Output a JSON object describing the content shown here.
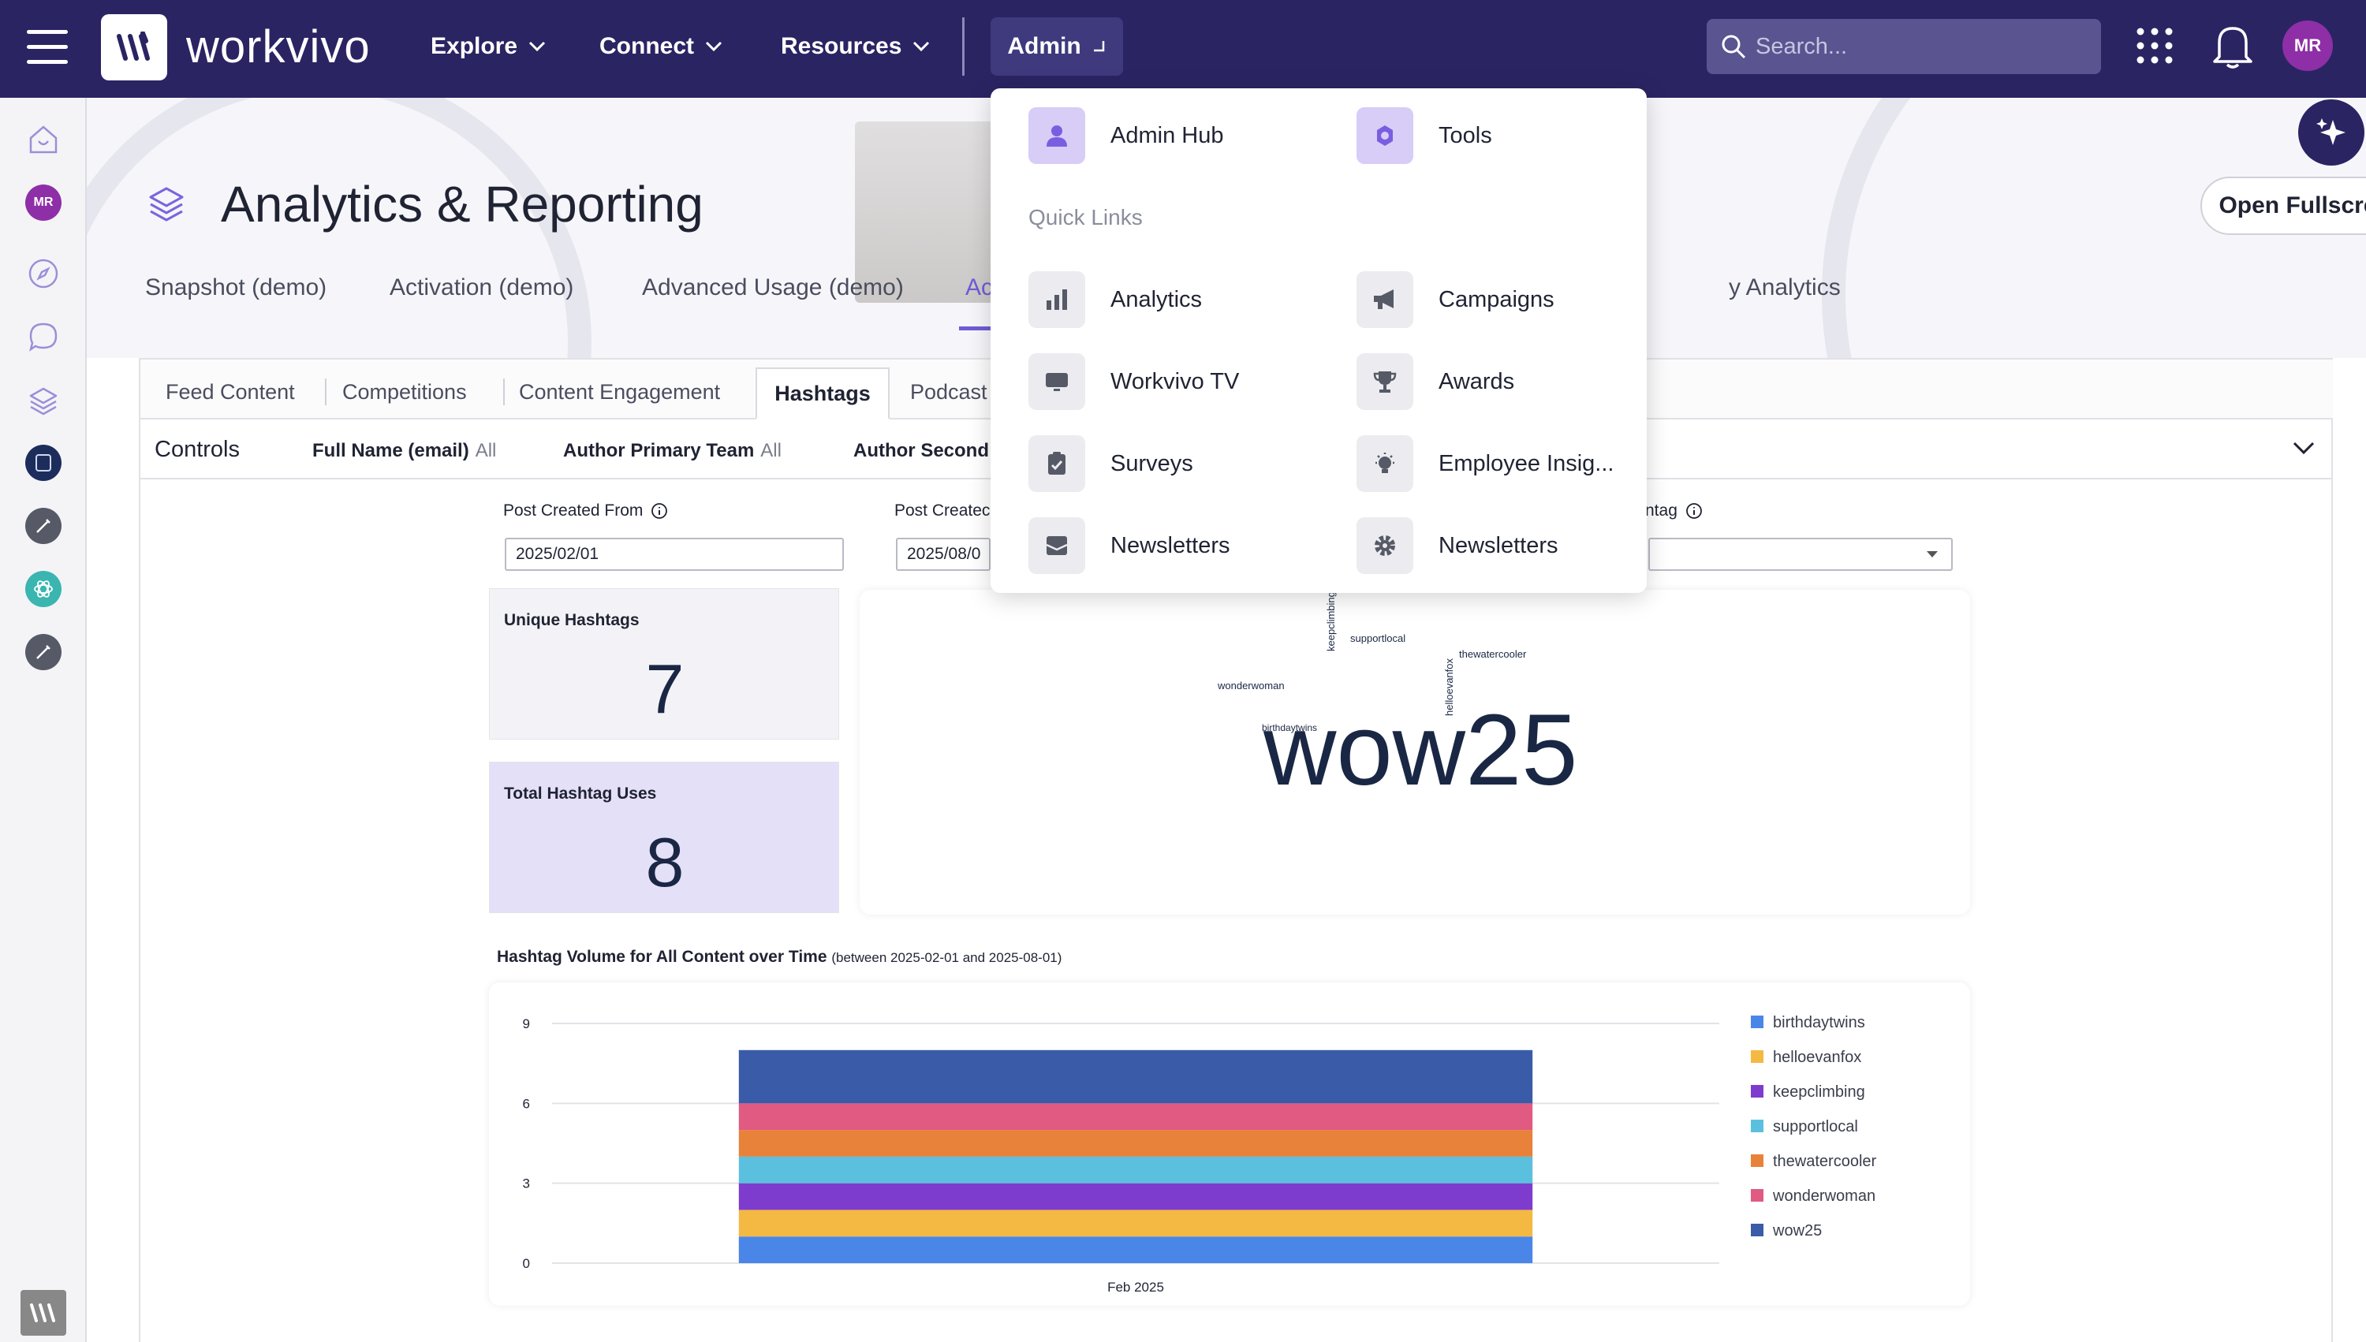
{
  "brand": "workvivo",
  "nav": {
    "explore": "Explore",
    "connect": "Connect",
    "resources": "Resources",
    "admin": "Admin"
  },
  "search": {
    "placeholder": "Search..."
  },
  "user": {
    "initials": "MR"
  },
  "page": {
    "title": "Analytics & Reporting",
    "fullscreen": "Open Fullscreen",
    "tabs": [
      "Snapshot (demo)",
      "Activation (demo)",
      "Advanced Usage (demo)",
      "Ac",
      "y Analytics"
    ]
  },
  "dashboard": {
    "subtabs": [
      "Feed Content",
      "Competitions",
      "Content Engagement",
      "Hashtags",
      "Podcast"
    ],
    "controls": {
      "label": "Controls",
      "filters": [
        {
          "name": "Full Name (email)",
          "value": "All"
        },
        {
          "name": "Author Primary Team",
          "value": "All"
        },
        {
          "name": "Author Second",
          "value": ""
        }
      ]
    },
    "fields": {
      "from_label": "Post Created From",
      "from_value": "2025/02/01",
      "to_label": "Post Createc",
      "to_value": "2025/08/0",
      "hashtag_label": "ntag"
    },
    "kpis": {
      "unique_label": "Unique Hashtags",
      "unique_value": "7",
      "total_label": "Total Hashtag Uses",
      "total_value": "8"
    },
    "word_cloud": {
      "words": [
        "wow25",
        "keepclimbing",
        "supportlocal",
        "thewatercooler",
        "helloevanfox",
        "wonderwoman",
        "birthdaytwins"
      ]
    },
    "chart_title": "Hashtag Volume for All Content over Time",
    "chart_subtitle": "(between 2025-02-01 and 2025-08-01)"
  },
  "chart_data": {
    "type": "bar",
    "stacked": true,
    "categories": [
      "Feb 2025"
    ],
    "series": [
      {
        "name": "birthdaytwins",
        "values": [
          1
        ],
        "color": "#4a86e8"
      },
      {
        "name": "helloevanfox",
        "values": [
          1
        ],
        "color": "#f4b942"
      },
      {
        "name": "keepclimbing",
        "values": [
          1
        ],
        "color": "#7e3ccf"
      },
      {
        "name": "supportlocal",
        "values": [
          1
        ],
        "color": "#5bc0de"
      },
      {
        "name": "thewatercooler",
        "values": [
          1
        ],
        "color": "#e8823a"
      },
      {
        "name": "wonderwoman",
        "values": [
          1
        ],
        "color": "#e05a82"
      },
      {
        "name": "wow25",
        "values": [
          2
        ],
        "color": "#3a5ba8"
      }
    ],
    "yticks": [
      "0",
      "3",
      "6",
      "9"
    ],
    "ylim": [
      0,
      9
    ],
    "grid": true,
    "legend": "right"
  },
  "admin_menu": {
    "admin_hub": "Admin Hub",
    "tools": "Tools",
    "quick_links": "Quick Links",
    "left": [
      "Analytics",
      "Workvivo TV",
      "Surveys",
      "Newsletters"
    ],
    "right": [
      "Campaigns",
      "Awards",
      "Employee Insig...",
      "Newsletters"
    ]
  },
  "colors": {
    "nav_bg": "#2a2463",
    "accent": "#6e5bd6",
    "avatar": "#8e2fa7"
  }
}
